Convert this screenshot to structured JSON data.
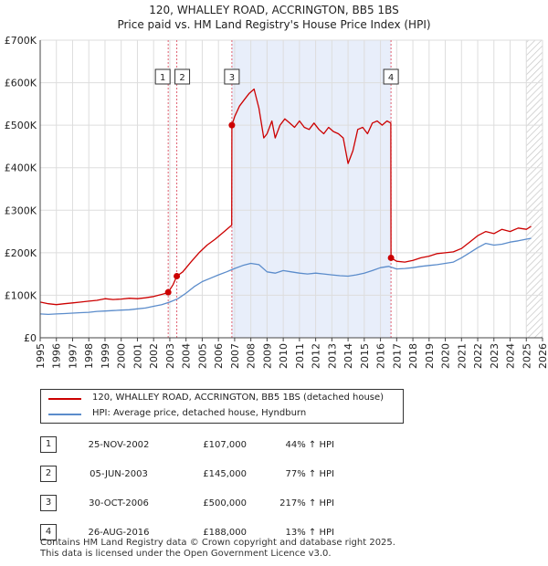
{
  "title": "120, WHALLEY ROAD, ACCRINGTON, BB5 1BS",
  "subtitle": "Price paid vs. HM Land Registry's House Price Index (HPI)",
  "legend": {
    "series1": "120, WHALLEY ROAD, ACCRINGTON, BB5 1BS (detached house)",
    "series2": "HPI: Average price, detached house, Hyndburn"
  },
  "colors": {
    "property": "#cc0000",
    "hpi": "#5b8ccb",
    "shade": "#e8eefa",
    "hatch": "#c8c8c8",
    "marker_line": "#e06070",
    "grid": "#dddddd"
  },
  "sales": [
    {
      "n": "1",
      "date": "25-NOV-2002",
      "price": "£107,000",
      "hpi": "44% ↑ HPI"
    },
    {
      "n": "2",
      "date": "05-JUN-2003",
      "price": "£145,000",
      "hpi": "77% ↑ HPI"
    },
    {
      "n": "3",
      "date": "30-OCT-2006",
      "price": "£500,000",
      "hpi": "217% ↑ HPI"
    },
    {
      "n": "4",
      "date": "26-AUG-2016",
      "price": "£188,000",
      "hpi": "13% ↑ HPI"
    }
  ],
  "footer": {
    "line1": "Contains HM Land Registry data © Crown copyright and database right 2025.",
    "line2": "This data is licensed under the Open Government Licence v3.0."
  },
  "chart_data": {
    "type": "line",
    "xlim": [
      1995,
      2026
    ],
    "ylim": [
      0,
      700000
    ],
    "y_ticks": [
      {
        "v": 0,
        "label": "£0"
      },
      {
        "v": 100000,
        "label": "£100K"
      },
      {
        "v": 200000,
        "label": "£200K"
      },
      {
        "v": 300000,
        "label": "£300K"
      },
      {
        "v": 400000,
        "label": "£400K"
      },
      {
        "v": 500000,
        "label": "£500K"
      },
      {
        "v": 600000,
        "label": "£600K"
      },
      {
        "v": 700000,
        "label": "£700K"
      }
    ],
    "x_ticks": [
      "1995",
      "1996",
      "1997",
      "1998",
      "1999",
      "2000",
      "2001",
      "2002",
      "2003",
      "2004",
      "2005",
      "2006",
      "2007",
      "2008",
      "2009",
      "2010",
      "2011",
      "2012",
      "2013",
      "2014",
      "2015",
      "2016",
      "2017",
      "2018",
      "2019",
      "2020",
      "2021",
      "2022",
      "2023",
      "2024",
      "2025",
      "2026"
    ],
    "grid": true,
    "shaded_range": [
      2006.83,
      2016.65
    ],
    "hatched_from": 2025.0,
    "sale_markers": [
      {
        "label": "1",
        "x": 2002.9,
        "y": 107000
      },
      {
        "label": "2",
        "x": 2003.43,
        "y": 145000
      },
      {
        "label": "3",
        "x": 2006.83,
        "y": 500000
      },
      {
        "label": "4",
        "x": 2016.65,
        "y": 188000
      }
    ],
    "series": [
      {
        "name": "120, WHALLEY ROAD, ACCRINGTON, BB5 1BS (detached house)",
        "x": [
          1995.0,
          1995.5,
          1996.0,
          1996.5,
          1997.0,
          1997.5,
          1998.0,
          1998.5,
          1999.0,
          1999.5,
          2000.0,
          2000.5,
          2001.0,
          2001.5,
          2002.0,
          2002.5,
          2002.89,
          2002.9,
          2003.2,
          2003.43,
          2003.8,
          2004.3,
          2004.8,
          2005.3,
          2005.8,
          2006.3,
          2006.82,
          2006.83,
          2007.0,
          2007.3,
          2007.6,
          2007.9,
          2008.2,
          2008.5,
          2008.8,
          2009.0,
          2009.3,
          2009.5,
          2009.8,
          2010.1,
          2010.4,
          2010.7,
          2011.0,
          2011.3,
          2011.6,
          2011.9,
          2012.2,
          2012.5,
          2012.8,
          2013.1,
          2013.4,
          2013.7,
          2014.0,
          2014.3,
          2014.6,
          2014.9,
          2015.2,
          2015.5,
          2015.8,
          2016.1,
          2016.4,
          2016.64,
          2016.65,
          2017.0,
          2017.5,
          2018.0,
          2018.5,
          2019.0,
          2019.5,
          2020.0,
          2020.5,
          2021.0,
          2021.5,
          2022.0,
          2022.5,
          2023.0,
          2023.5,
          2024.0,
          2024.5,
          2025.0,
          2025.3
        ],
        "y": [
          84000,
          80000,
          78000,
          80000,
          82000,
          84000,
          86000,
          88000,
          92000,
          90000,
          91000,
          93000,
          92000,
          94000,
          97000,
          102000,
          106000,
          107000,
          125000,
          145000,
          155000,
          178000,
          200000,
          218000,
          232000,
          248000,
          265000,
          500000,
          520000,
          545000,
          560000,
          575000,
          585000,
          540000,
          470000,
          480000,
          510000,
          470000,
          500000,
          515000,
          505000,
          495000,
          510000,
          495000,
          490000,
          505000,
          490000,
          480000,
          495000,
          485000,
          480000,
          470000,
          410000,
          440000,
          490000,
          495000,
          480000,
          505000,
          510000,
          500000,
          510000,
          505000,
          188000,
          180000,
          178000,
          182000,
          188000,
          192000,
          198000,
          200000,
          202000,
          210000,
          225000,
          240000,
          250000,
          245000,
          255000,
          250000,
          258000,
          255000,
          262000
        ]
      },
      {
        "name": "HPI: Average price, detached house, Hyndburn",
        "x": [
          1995.0,
          1995.5,
          1996.0,
          1996.5,
          1997.0,
          1997.5,
          1998.0,
          1998.5,
          1999.0,
          1999.5,
          2000.0,
          2000.5,
          2001.0,
          2001.5,
          2002.0,
          2002.5,
          2003.0,
          2003.5,
          2004.0,
          2004.5,
          2005.0,
          2005.5,
          2006.0,
          2006.5,
          2007.0,
          2007.5,
          2008.0,
          2008.5,
          2009.0,
          2009.5,
          2010.0,
          2010.5,
          2011.0,
          2011.5,
          2012.0,
          2012.5,
          2013.0,
          2013.5,
          2014.0,
          2014.5,
          2015.0,
          2015.5,
          2016.0,
          2016.5,
          2017.0,
          2017.5,
          2018.0,
          2018.5,
          2019.0,
          2019.5,
          2020.0,
          2020.5,
          2021.0,
          2021.5,
          2022.0,
          2022.5,
          2023.0,
          2023.5,
          2024.0,
          2024.5,
          2025.0,
          2025.3
        ],
        "y": [
          56000,
          55000,
          56000,
          57000,
          58000,
          59000,
          60000,
          62000,
          63000,
          64000,
          65000,
          66000,
          68000,
          70000,
          74000,
          78000,
          84000,
          92000,
          105000,
          120000,
          132000,
          140000,
          148000,
          155000,
          163000,
          170000,
          175000,
          172000,
          155000,
          152000,
          158000,
          155000,
          152000,
          150000,
          152000,
          150000,
          148000,
          146000,
          145000,
          148000,
          152000,
          158000,
          165000,
          168000,
          162000,
          163000,
          165000,
          168000,
          170000,
          172000,
          175000,
          178000,
          188000,
          200000,
          212000,
          222000,
          218000,
          220000,
          225000,
          228000,
          232000,
          234000
        ]
      }
    ]
  }
}
